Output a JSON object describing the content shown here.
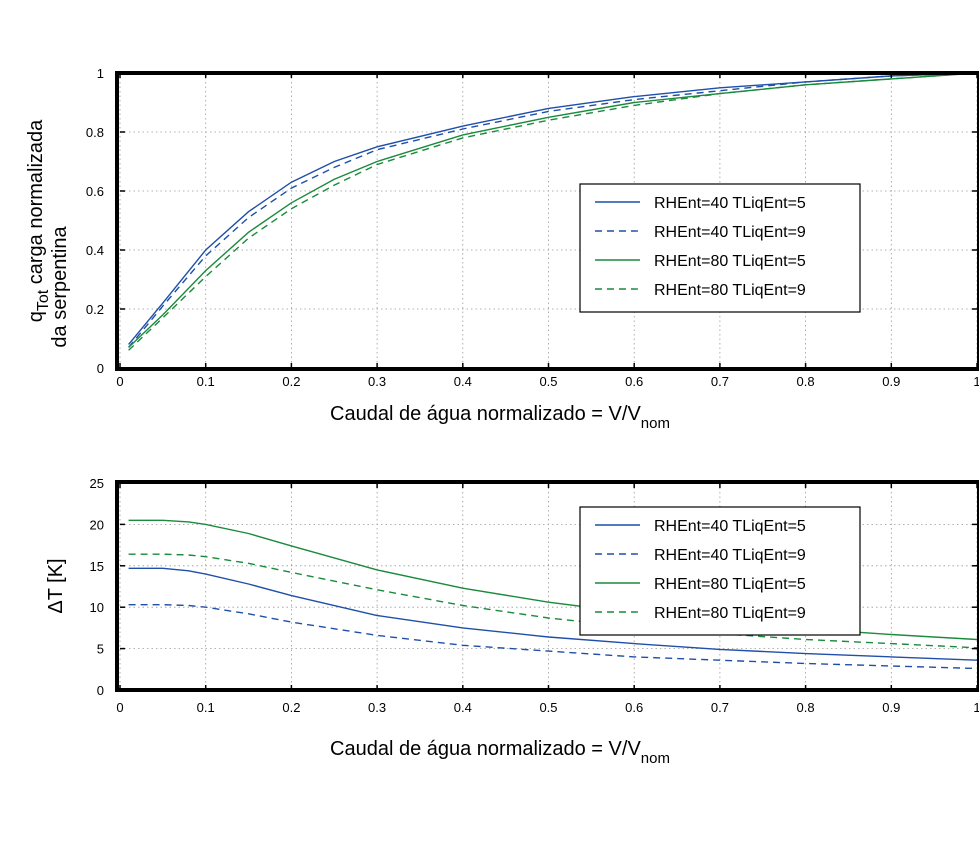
{
  "chart_data": [
    {
      "type": "line",
      "xlabel": "Caudal de água normalizado  = V/V",
      "xlabel_sub": "nom",
      "ylabel_line1_main": "q",
      "ylabel_line1_sub": "Tot",
      "ylabel_line1_rest": " carga normalizada",
      "ylabel_line2": "da serpentina",
      "xlim": [
        0,
        1
      ],
      "ylim": [
        0,
        1
      ],
      "xticks": [
        "0",
        "0.1",
        "0.2",
        "0.3",
        "0.4",
        "0.5",
        "0.6",
        "0.7",
        "0.8",
        "0.9",
        "1"
      ],
      "yticks": [
        "0",
        "0.2",
        "0.4",
        "0.6",
        "0.8",
        "1"
      ],
      "grid": true,
      "legend_position": "right",
      "series": [
        {
          "name": "RHEnt=40 TLiqEnt=5",
          "color": "#1f4fa8",
          "dash": "solid",
          "x": [
            0.01,
            0.05,
            0.1,
            0.15,
            0.2,
            0.25,
            0.3,
            0.4,
            0.5,
            0.6,
            0.7,
            0.8,
            0.9,
            1.0
          ],
          "y": [
            0.08,
            0.22,
            0.4,
            0.53,
            0.63,
            0.7,
            0.75,
            0.82,
            0.88,
            0.92,
            0.95,
            0.97,
            0.99,
            1.0
          ]
        },
        {
          "name": "RHEnt=40 TLiqEnt=9",
          "color": "#1f4fa8",
          "dash": "dashed",
          "x": [
            0.01,
            0.05,
            0.1,
            0.15,
            0.2,
            0.25,
            0.3,
            0.4,
            0.5,
            0.6,
            0.7,
            0.8,
            0.9,
            1.0
          ],
          "y": [
            0.07,
            0.21,
            0.38,
            0.51,
            0.61,
            0.68,
            0.74,
            0.81,
            0.87,
            0.91,
            0.94,
            0.97,
            0.99,
            1.0
          ]
        },
        {
          "name": "RHEnt=80 TLiqEnt=5",
          "color": "#1a8a3c",
          "dash": "solid",
          "x": [
            0.01,
            0.05,
            0.1,
            0.15,
            0.2,
            0.25,
            0.3,
            0.4,
            0.5,
            0.6,
            0.7,
            0.8,
            0.9,
            1.0
          ],
          "y": [
            0.07,
            0.18,
            0.33,
            0.46,
            0.56,
            0.64,
            0.7,
            0.79,
            0.85,
            0.9,
            0.93,
            0.96,
            0.98,
            1.0
          ]
        },
        {
          "name": "RHEnt=80 TLiqEnt=9",
          "color": "#1a8a3c",
          "dash": "dashed",
          "x": [
            0.01,
            0.05,
            0.1,
            0.15,
            0.2,
            0.25,
            0.3,
            0.4,
            0.5,
            0.6,
            0.7,
            0.8,
            0.9,
            1.0
          ],
          "y": [
            0.06,
            0.17,
            0.31,
            0.44,
            0.54,
            0.62,
            0.69,
            0.78,
            0.84,
            0.89,
            0.93,
            0.96,
            0.98,
            1.0
          ]
        }
      ]
    },
    {
      "type": "line",
      "xlabel": "Caudal de água normalizado  = V/V",
      "xlabel_sub": "nom",
      "ylabel": "ΔT [K]",
      "xlim": [
        0,
        1
      ],
      "ylim": [
        0,
        25
      ],
      "xticks": [
        "0",
        "0.1",
        "0.2",
        "0.3",
        "0.4",
        "0.5",
        "0.6",
        "0.7",
        "0.8",
        "0.9",
        "1"
      ],
      "yticks": [
        "0",
        "5",
        "10",
        "15",
        "20",
        "25"
      ],
      "grid": true,
      "legend_position": "top-right",
      "series": [
        {
          "name": "RHEnt=40 TLiqEnt=5",
          "color": "#1f4fa8",
          "dash": "solid",
          "x": [
            0.01,
            0.05,
            0.08,
            0.1,
            0.15,
            0.2,
            0.3,
            0.4,
            0.5,
            0.6,
            0.7,
            0.8,
            0.9,
            1.0
          ],
          "y": [
            14.7,
            14.7,
            14.4,
            14.0,
            12.8,
            11.4,
            9.0,
            7.5,
            6.4,
            5.6,
            4.9,
            4.4,
            4.0,
            3.6
          ]
        },
        {
          "name": "RHEnt=40 TLiqEnt=9",
          "color": "#1f4fa8",
          "dash": "dashed",
          "x": [
            0.01,
            0.05,
            0.08,
            0.1,
            0.15,
            0.2,
            0.3,
            0.4,
            0.5,
            0.6,
            0.7,
            0.8,
            0.9,
            1.0
          ],
          "y": [
            10.3,
            10.3,
            10.2,
            10.0,
            9.2,
            8.2,
            6.6,
            5.4,
            4.7,
            4.0,
            3.6,
            3.2,
            2.9,
            2.6
          ]
        },
        {
          "name": "RHEnt=80 TLiqEnt=5",
          "color": "#1a8a3c",
          "dash": "solid",
          "x": [
            0.01,
            0.05,
            0.08,
            0.1,
            0.15,
            0.2,
            0.3,
            0.4,
            0.5,
            0.6,
            0.7,
            0.8,
            0.9,
            1.0
          ],
          "y": [
            20.5,
            20.5,
            20.3,
            20.0,
            18.9,
            17.4,
            14.5,
            12.3,
            10.6,
            9.3,
            8.3,
            7.4,
            6.7,
            6.1
          ]
        },
        {
          "name": "RHEnt=80 TLiqEnt=9",
          "color": "#1a8a3c",
          "dash": "dashed",
          "x": [
            0.01,
            0.05,
            0.08,
            0.1,
            0.15,
            0.2,
            0.3,
            0.4,
            0.5,
            0.6,
            0.7,
            0.8,
            0.9,
            1.0
          ],
          "y": [
            16.4,
            16.4,
            16.3,
            16.1,
            15.3,
            14.2,
            12.1,
            10.2,
            8.7,
            7.6,
            6.8,
            6.1,
            5.6,
            5.1
          ]
        }
      ]
    }
  ]
}
